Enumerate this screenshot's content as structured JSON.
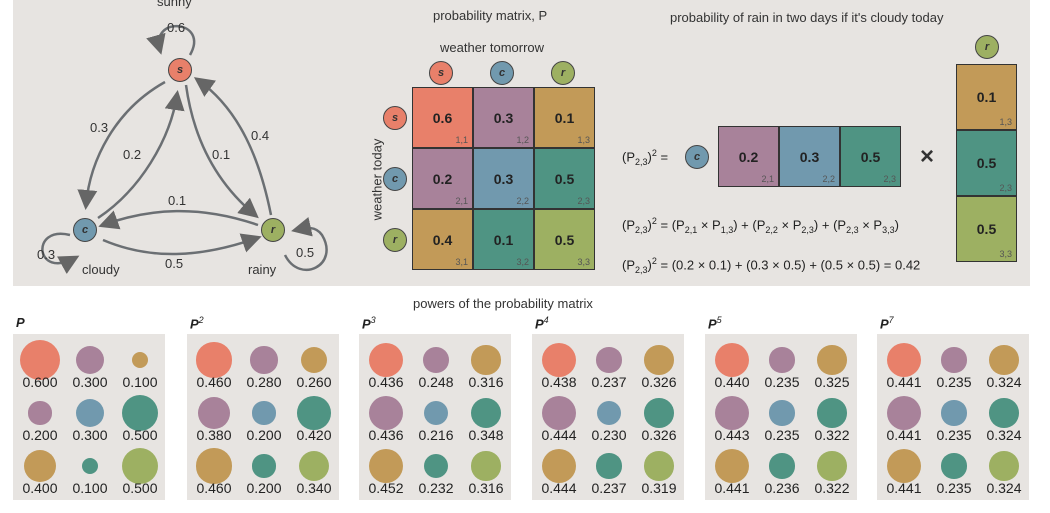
{
  "colors": {
    "s": "#e8806a",
    "purple": "#a8829a",
    "ochre": "#c29a58",
    "blue": "#7199ae",
    "teal": "#4f9483",
    "green": "#9db062"
  },
  "graph": {
    "nodes": [
      {
        "id": "s",
        "label": "sunny"
      },
      {
        "id": "c",
        "label": "cloudy"
      },
      {
        "id": "r",
        "label": "rainy"
      }
    ],
    "edges": [
      {
        "from": "s",
        "to": "s",
        "p": "0.6"
      },
      {
        "from": "s",
        "to": "c",
        "p": "0.3"
      },
      {
        "from": "c",
        "to": "s",
        "p": "0.2"
      },
      {
        "from": "s",
        "to": "r",
        "p": "0.1"
      },
      {
        "from": "r",
        "to": "s",
        "p": "0.4"
      },
      {
        "from": "r",
        "to": "c",
        "p": "0.1"
      },
      {
        "from": "c",
        "to": "r",
        "p": "0.5"
      },
      {
        "from": "c",
        "to": "c",
        "p": "0.3"
      },
      {
        "from": "r",
        "to": "r",
        "p": "0.5"
      }
    ]
  },
  "matrix": {
    "title": "probability matrix, P",
    "col_axis": "weather tomorrow",
    "row_axis": "weather today",
    "states": [
      "s",
      "c",
      "r"
    ],
    "values": [
      [
        "0.6",
        "0.3",
        "0.1"
      ],
      [
        "0.2",
        "0.3",
        "0.5"
      ],
      [
        "0.4",
        "0.1",
        "0.5"
      ]
    ],
    "indices": [
      [
        "1,1",
        "1,2",
        "1,3"
      ],
      [
        "2,1",
        "2,2",
        "2,3"
      ],
      [
        "3,1",
        "3,2",
        "3,3"
      ]
    ],
    "cell_colors": [
      [
        "s",
        "purple",
        "ochre"
      ],
      [
        "purple",
        "blue",
        "teal"
      ],
      [
        "ochre",
        "teal",
        "green"
      ]
    ]
  },
  "example": {
    "title": "probability of rain in two days if it's cloudy today",
    "row_state": "c",
    "col_state": "r",
    "row": [
      {
        "v": "0.2",
        "ix": "2,1",
        "c": "purple"
      },
      {
        "v": "0.3",
        "ix": "2,2",
        "c": "blue"
      },
      {
        "v": "0.5",
        "ix": "2,3",
        "c": "teal"
      }
    ],
    "col": [
      {
        "v": "0.1",
        "ix": "1,3",
        "c": "ochre"
      },
      {
        "v": "0.5",
        "ix": "2,3",
        "c": "teal"
      },
      {
        "v": "0.5",
        "ix": "3,3",
        "c": "green"
      }
    ],
    "times": "×",
    "eq_lhs": [
      {
        "t": "(P"
      },
      {
        "sub": "2,3"
      },
      {
        "t": ")"
      },
      {
        "sup": "2"
      },
      {
        "t": " = "
      }
    ],
    "eq2": [
      {
        "t": "(P"
      },
      {
        "sub": "2,3"
      },
      {
        "t": ")"
      },
      {
        "sup": "2"
      },
      {
        "t": " = (P"
      },
      {
        "sub": "2,1"
      },
      {
        "t": " × P"
      },
      {
        "sub": "1,3"
      },
      {
        "t": ") + (P"
      },
      {
        "sub": "2,2"
      },
      {
        "t": " × P"
      },
      {
        "sub": "2,3"
      },
      {
        "t": ") + (P"
      },
      {
        "sub": "2,3"
      },
      {
        "t": " × P"
      },
      {
        "sub": "3,3"
      },
      {
        "t": ")"
      }
    ],
    "eq3": [
      {
        "t": "(P"
      },
      {
        "sub": "2,3"
      },
      {
        "t": ")"
      },
      {
        "sup": "2"
      },
      {
        "t": " = (0.2 × 0.1) + (0.3 × 0.5) + (0.5 × 0.5) = 0.42"
      }
    ]
  },
  "powers": {
    "title": "powers of the probability matrix",
    "panels": [
      {
        "base": "P",
        "exp": "",
        "values": [
          [
            "0.600",
            "0.300",
            "0.100"
          ],
          [
            "0.200",
            "0.300",
            "0.500"
          ],
          [
            "0.400",
            "0.100",
            "0.500"
          ]
        ]
      },
      {
        "base": "P",
        "exp": "2",
        "values": [
          [
            "0.460",
            "0.280",
            "0.260"
          ],
          [
            "0.380",
            "0.200",
            "0.420"
          ],
          [
            "0.460",
            "0.200",
            "0.340"
          ]
        ]
      },
      {
        "base": "P",
        "exp": "3",
        "values": [
          [
            "0.436",
            "0.248",
            "0.316"
          ],
          [
            "0.436",
            "0.216",
            "0.348"
          ],
          [
            "0.452",
            "0.232",
            "0.316"
          ]
        ]
      },
      {
        "base": "P",
        "exp": "4",
        "values": [
          [
            "0.438",
            "0.237",
            "0.326"
          ],
          [
            "0.444",
            "0.230",
            "0.326"
          ],
          [
            "0.444",
            "0.237",
            "0.319"
          ]
        ]
      },
      {
        "base": "P",
        "exp": "5",
        "values": [
          [
            "0.440",
            "0.235",
            "0.325"
          ],
          [
            "0.443",
            "0.235",
            "0.322"
          ],
          [
            "0.441",
            "0.236",
            "0.322"
          ]
        ]
      },
      {
        "base": "P",
        "exp": "7",
        "values": [
          [
            "0.441",
            "0.235",
            "0.324"
          ],
          [
            "0.441",
            "0.235",
            "0.324"
          ],
          [
            "0.441",
            "0.235",
            "0.324"
          ]
        ]
      }
    ]
  }
}
